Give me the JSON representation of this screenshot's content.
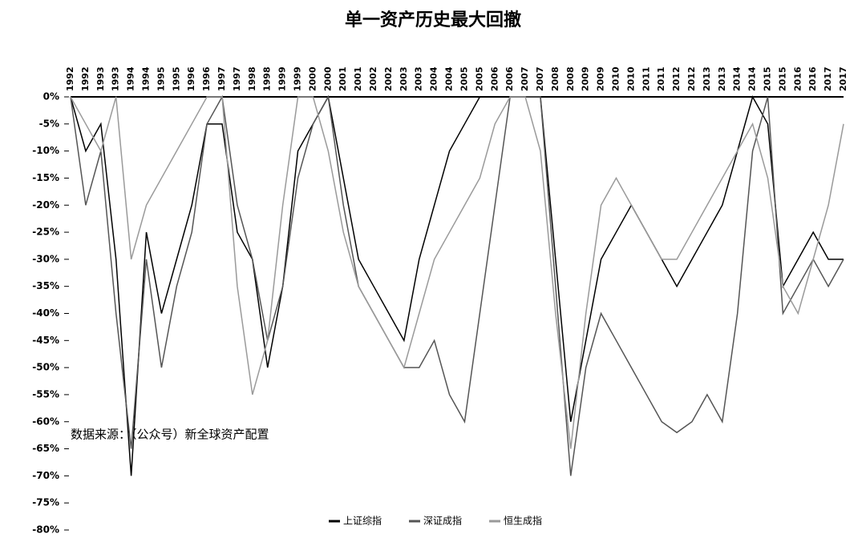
{
  "chart_data": {
    "type": "line",
    "title": "单一资产历史最大回撤",
    "annotation": "数据来源：（公众号）新全球资产配置",
    "categories": [
      "1992",
      "1992",
      "1993",
      "1993",
      "1994",
      "1994",
      "1995",
      "1995",
      "1996",
      "1996",
      "1997",
      "1997",
      "1998",
      "1998",
      "1999",
      "1999",
      "2000",
      "2000",
      "2001",
      "2001",
      "2002",
      "2002",
      "2003",
      "2003",
      "2004",
      "2004",
      "2005",
      "2005",
      "2006",
      "2006",
      "2007",
      "2007",
      "2008",
      "2008",
      "2009",
      "2009",
      "2010",
      "2010",
      "2011",
      "2011",
      "2012",
      "2012",
      "2013",
      "2013",
      "2014",
      "2014",
      "2015",
      "2015",
      "2016",
      "2016",
      "2017",
      "2017"
    ],
    "series": [
      {
        "name": "上证综指",
        "color": "#000000",
        "values": [
          0,
          -10,
          -5,
          -30,
          -70,
          -25,
          -40,
          -30,
          -20,
          -5,
          -5,
          -25,
          -30,
          -50,
          -35,
          -10,
          -5,
          0,
          -15,
          -30,
          -35,
          -40,
          -45,
          -30,
          -20,
          -10,
          -5,
          0,
          0,
          0,
          0,
          0,
          -30,
          -60,
          -45,
          -30,
          -25,
          -20,
          -25,
          -30,
          -35,
          -30,
          -25,
          -20,
          -10,
          0,
          -5,
          -35,
          -30,
          -25,
          -30,
          -30
        ]
      },
      {
        "name": "深证成指",
        "color": "#555555",
        "values": [
          0,
          -20,
          -10,
          -40,
          -65,
          -30,
          -50,
          -35,
          -25,
          -5,
          0,
          -20,
          -30,
          -45,
          -35,
          -15,
          -5,
          0,
          -20,
          -35,
          -40,
          -45,
          -50,
          -50,
          -45,
          -55,
          -60,
          -40,
          -20,
          0,
          0,
          0,
          -35,
          -70,
          -50,
          -40,
          -45,
          -50,
          -55,
          -60,
          -62,
          -60,
          -55,
          -60,
          -40,
          -10,
          0,
          -40,
          -35,
          -30,
          -35,
          -30
        ]
      },
      {
        "name": "恒生成指",
        "color": "#9a9a9a",
        "values": [
          0,
          -5,
          -10,
          0,
          -30,
          -20,
          -15,
          -10,
          -5,
          0,
          0,
          -35,
          -55,
          -45,
          -20,
          0,
          0,
          -10,
          -25,
          -35,
          -40,
          -45,
          -50,
          -40,
          -30,
          -25,
          -20,
          -15,
          -5,
          0,
          0,
          -10,
          -40,
          -65,
          -40,
          -20,
          -15,
          -20,
          -25,
          -30,
          -30,
          -25,
          -20,
          -15,
          -10,
          -5,
          -15,
          -35,
          -40,
          -30,
          -20,
          -5
        ]
      }
    ],
    "ylim": [
      -80,
      0
    ],
    "yticks": [
      {
        "value": 0,
        "label": "0%"
      },
      {
        "value": -5,
        "label": "-5%"
      },
      {
        "value": -10,
        "label": "-10%"
      },
      {
        "value": -15,
        "label": "-15%"
      },
      {
        "value": -20,
        "label": "-20%"
      },
      {
        "value": -25,
        "label": "-25%"
      },
      {
        "value": -30,
        "label": "-30%"
      },
      {
        "value": -35,
        "label": "-35%"
      },
      {
        "value": -40,
        "label": "-40%"
      },
      {
        "value": -45,
        "label": "-45%"
      },
      {
        "value": -50,
        "label": "-50%"
      },
      {
        "value": -55,
        "label": "-55%"
      },
      {
        "value": -60,
        "label": "-60%"
      },
      {
        "value": -65,
        "label": "-65%"
      },
      {
        "value": -70,
        "label": "-70%"
      },
      {
        "value": -75,
        "label": "-75%"
      },
      {
        "value": -80,
        "label": "-80%"
      }
    ],
    "grid": false
  }
}
